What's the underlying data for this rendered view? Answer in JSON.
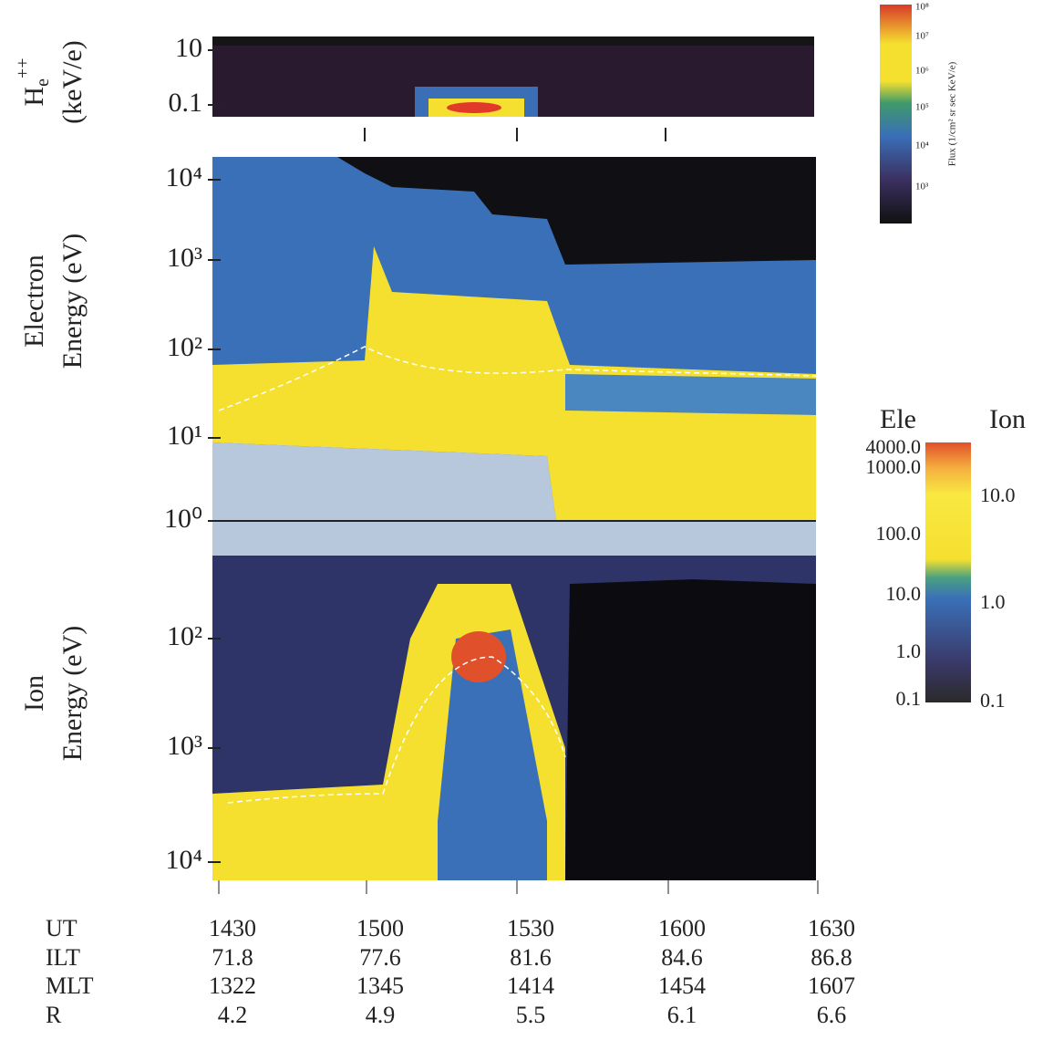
{
  "panels": [
    {
      "ylabel": {
        "main": "H",
        "sub": "e",
        "sup": "++",
        "unit": "(keV/e)"
      },
      "yticks": [
        "10",
        "0.1"
      ]
    },
    {
      "ylabel": [
        "Electron",
        "Energy (eV)"
      ],
      "yticks": [
        "10⁴",
        "10³",
        "10²",
        "10¹",
        "10⁰"
      ]
    },
    {
      "ylabel": [
        "Ion",
        "Energy (eV)"
      ],
      "yticks": [
        "10²",
        "10³",
        "10⁴"
      ]
    }
  ],
  "flux_colorbar": {
    "labels": [
      "10⁸",
      "10⁷",
      "10⁶",
      "10⁵",
      "10⁴",
      "10³"
    ],
    "title": "Flux (1/cm² sr sec KeV/e)"
  },
  "moment_colorbar": {
    "headers": [
      "Ele",
      "Ion"
    ],
    "left_labels": [
      "4000.0",
      "1000.0",
      "100.0",
      "10.0",
      "1.0",
      "0.1"
    ],
    "right_labels": [
      "10.0",
      "1.0",
      "0.1"
    ]
  },
  "ephemeris": [
    [
      "UT",
      "1430",
      "1500",
      "1530",
      "1600",
      "1630"
    ],
    [
      "ILT",
      "71.8",
      "77.6",
      "81.6",
      "84.6",
      "86.8"
    ],
    [
      "MLT",
      "1322",
      "1345",
      "1414",
      "1454",
      "1607"
    ],
    [
      "R",
      "4.2",
      "4.9",
      "5.5",
      "6.1",
      "6.6"
    ]
  ]
}
